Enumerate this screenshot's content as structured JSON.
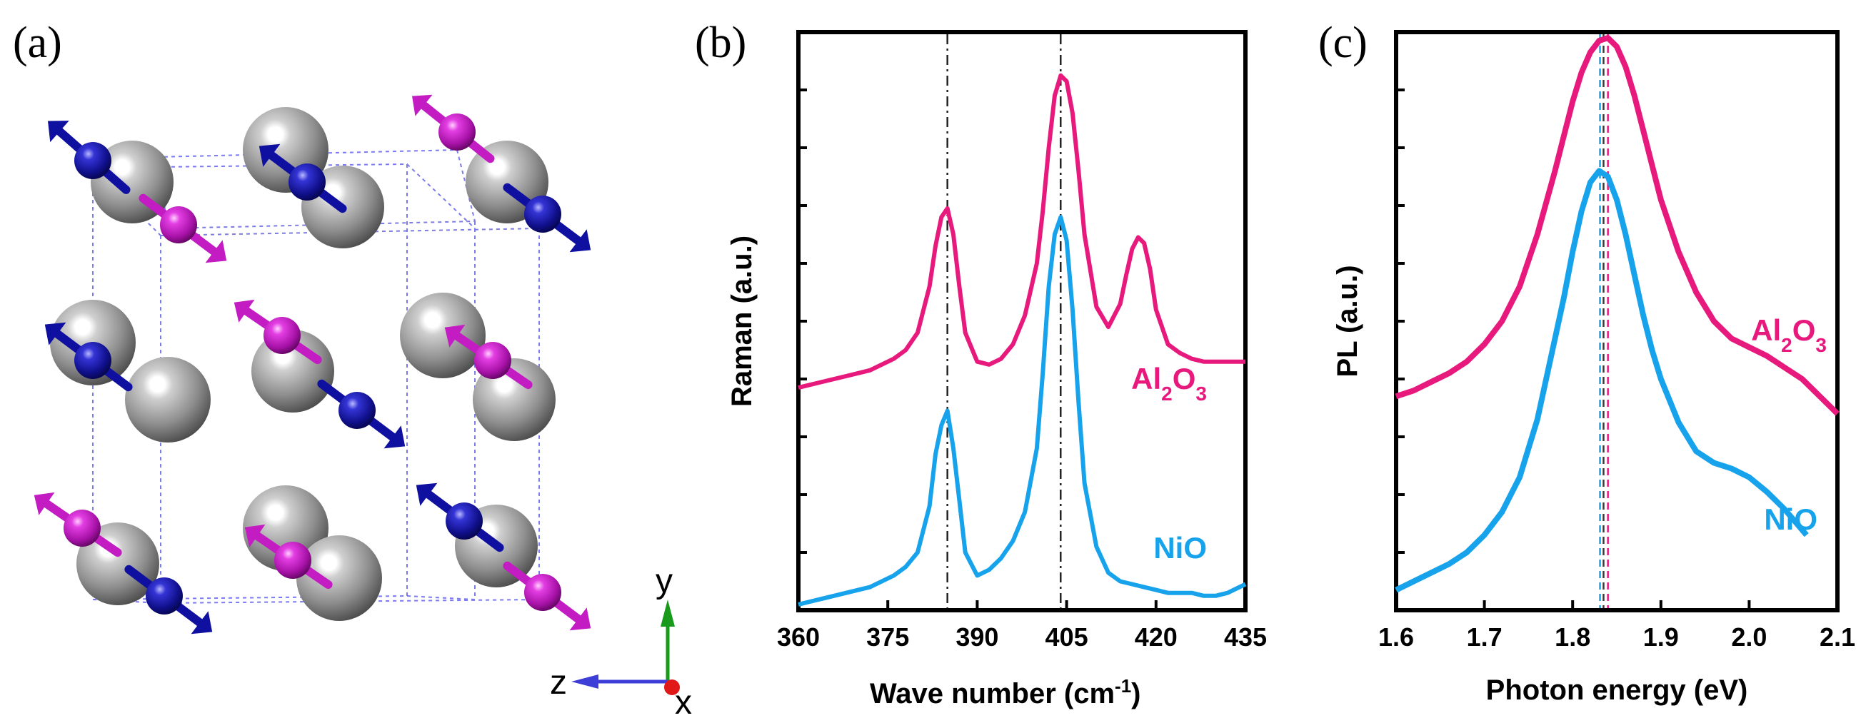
{
  "panels": {
    "a": "(a)",
    "b": "(b)",
    "c": "(c)"
  },
  "crystal": {
    "axes": [
      {
        "letter": "y",
        "color": "#1a9a1a"
      },
      {
        "letter": "z",
        "color": "#3d3dd8"
      },
      {
        "letter": "x",
        "color": "#e01818"
      }
    ],
    "atom_colors": {
      "nickel": "#8a8a8a",
      "spin_up": "#1010a0",
      "spin_down": "#c21cc2",
      "cell": "#7b7bea"
    }
  },
  "chart_data": [
    {
      "panel": "b",
      "type": "line",
      "xlabel": "Wave number (cm",
      "xlabel_sup": "-1",
      "xlabel_end": ")",
      "ylabel": "Raman (a.u.)",
      "xlim": [
        360,
        435
      ],
      "ylim": [
        0,
        10
      ],
      "xticks": [
        360,
        375,
        390,
        405,
        420,
        435
      ],
      "yticks_minor": [
        1,
        2,
        3,
        4,
        5,
        6,
        7,
        8,
        9
      ],
      "vlines": [
        385,
        404
      ],
      "series": [
        {
          "name": "Al2O3",
          "label_main": "Al",
          "label_sub1": "2",
          "label_mid": "O",
          "label_sub2": "3",
          "color": "#e8197d",
          "x": [
            360,
            364,
            368,
            372,
            376,
            378,
            380,
            382,
            383,
            384,
            385,
            386,
            387,
            388,
            390,
            392,
            394,
            396,
            398,
            400,
            401,
            402,
            403,
            404,
            405,
            406,
            407,
            408,
            410,
            412,
            414,
            415,
            416,
            417,
            418,
            419,
            420,
            422,
            424,
            426,
            428,
            430,
            432,
            435
          ],
          "y": [
            3.85,
            3.95,
            4.05,
            4.15,
            4.35,
            4.5,
            4.8,
            5.6,
            6.3,
            6.8,
            6.95,
            6.5,
            5.6,
            4.8,
            4.3,
            4.25,
            4.35,
            4.6,
            5.1,
            6.0,
            6.9,
            8.0,
            8.9,
            9.25,
            9.15,
            8.6,
            7.6,
            6.5,
            5.25,
            4.9,
            5.3,
            5.8,
            6.25,
            6.45,
            6.35,
            5.9,
            5.2,
            4.6,
            4.45,
            4.35,
            4.3,
            4.3,
            4.3,
            4.3
          ]
        },
        {
          "name": "NiO",
          "label": "NiO",
          "color": "#16a3ec",
          "x": [
            360,
            364,
            368,
            372,
            376,
            378,
            380,
            382,
            383,
            384,
            385,
            386,
            387,
            388,
            390,
            392,
            394,
            396,
            398,
            400,
            401,
            402,
            403,
            404,
            405,
            406,
            407,
            408,
            410,
            412,
            414,
            416,
            418,
            420,
            422,
            424,
            426,
            428,
            430,
            432,
            435
          ],
          "y": [
            0.1,
            0.2,
            0.3,
            0.4,
            0.6,
            0.75,
            1.0,
            1.8,
            2.7,
            3.2,
            3.45,
            2.8,
            1.9,
            1.0,
            0.6,
            0.7,
            0.9,
            1.2,
            1.7,
            2.8,
            4.1,
            5.6,
            6.5,
            6.8,
            6.4,
            5.2,
            3.6,
            2.2,
            1.1,
            0.65,
            0.5,
            0.45,
            0.4,
            0.35,
            0.3,
            0.3,
            0.3,
            0.25,
            0.25,
            0.3,
            0.45
          ]
        }
      ]
    },
    {
      "panel": "c",
      "type": "line",
      "xlabel": "Photon energy (eV)",
      "ylabel": "PL (a.u.)",
      "xlim": [
        1.6,
        2.1
      ],
      "ylim": [
        0,
        10
      ],
      "xticks": [
        1.6,
        1.7,
        1.8,
        1.9,
        2.0,
        2.1
      ],
      "xtick_labels": [
        "1.6",
        "1.7",
        "1.8",
        "1.9",
        "2.0",
        "2.1"
      ],
      "yticks_minor": [
        1,
        2,
        3,
        4,
        5,
        6,
        7,
        8,
        9
      ],
      "vlines": [
        {
          "x": 1.831,
          "color": "#16a3ec"
        },
        {
          "x": 1.835,
          "color": "#3a3a3a"
        },
        {
          "x": 1.84,
          "color": "#e8197d"
        }
      ],
      "series": [
        {
          "name": "Al2O3",
          "label_main": "Al",
          "label_sub1": "2",
          "label_mid": "O",
          "label_sub2": "3",
          "color": "#e8197d",
          "x": [
            1.6,
            1.62,
            1.64,
            1.66,
            1.68,
            1.7,
            1.72,
            1.74,
            1.76,
            1.78,
            1.79,
            1.8,
            1.81,
            1.82,
            1.83,
            1.84,
            1.85,
            1.86,
            1.87,
            1.88,
            1.89,
            1.9,
            1.92,
            1.94,
            1.96,
            1.98,
            2.0,
            2.02,
            2.04,
            2.06,
            2.08,
            2.1
          ],
          "y": [
            3.7,
            3.8,
            3.95,
            4.1,
            4.3,
            4.6,
            5.0,
            5.6,
            6.5,
            7.6,
            8.2,
            8.8,
            9.3,
            9.65,
            9.85,
            9.9,
            9.75,
            9.4,
            8.9,
            8.3,
            7.7,
            7.1,
            6.2,
            5.5,
            5.0,
            4.7,
            4.55,
            4.4,
            4.2,
            4.0,
            3.7,
            3.4
          ]
        },
        {
          "name": "NiO",
          "label": "NiO",
          "color": "#16a3ec",
          "x": [
            1.6,
            1.62,
            1.64,
            1.66,
            1.68,
            1.7,
            1.72,
            1.74,
            1.76,
            1.78,
            1.79,
            1.8,
            1.81,
            1.82,
            1.83,
            1.84,
            1.85,
            1.86,
            1.87,
            1.88,
            1.89,
            1.9,
            1.92,
            1.94,
            1.96,
            1.98,
            2.0,
            2.02,
            2.04,
            2.065
          ],
          "y": [
            0.35,
            0.5,
            0.65,
            0.8,
            1.0,
            1.3,
            1.7,
            2.3,
            3.3,
            4.7,
            5.4,
            6.2,
            6.9,
            7.4,
            7.6,
            7.5,
            7.1,
            6.5,
            5.8,
            5.1,
            4.5,
            4.0,
            3.25,
            2.75,
            2.55,
            2.45,
            2.3,
            2.05,
            1.75,
            1.3
          ]
        }
      ]
    }
  ]
}
